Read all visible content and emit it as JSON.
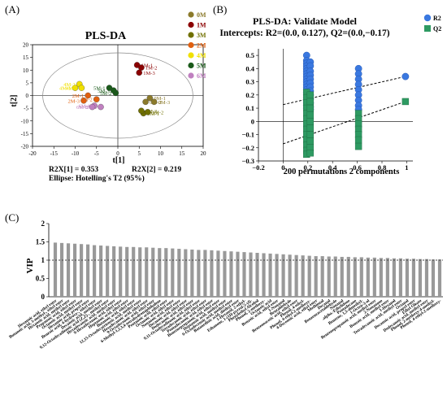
{
  "panels": {
    "a": "(A)",
    "b": "(B)",
    "c": "(C)"
  },
  "chart_data": [
    {
      "type": "scatter",
      "title": "PLS-DA",
      "xlabel": "t[1]",
      "ylabel": "t[2]",
      "xlim": [
        -20,
        20
      ],
      "ylim": [
        -20,
        20
      ],
      "xticks": [
        -20,
        -15,
        -10,
        -5,
        0,
        5,
        10,
        15,
        20
      ],
      "yticks": [
        -20,
        -15,
        -10,
        -5,
        0,
        5,
        10,
        15,
        20
      ],
      "footer": {
        "r2x1": "R2X[1] = 0.353",
        "r2x2": "R2X[2] = 0.219",
        "ellipse": "Ellipse: Hotelling's T2 (95%)"
      },
      "legend_position": "right",
      "series": [
        {
          "name": "0M",
          "color": "#8b7a2b",
          "points": [
            {
              "x": 7.5,
              "y": -1,
              "label": "0M-1"
            },
            {
              "x": 6.5,
              "y": -2.5,
              "label": "0M-2"
            },
            {
              "x": 8.5,
              "y": -2.5,
              "label": "0M-3"
            }
          ]
        },
        {
          "name": "1M",
          "color": "#8b0000",
          "points": [
            {
              "x": 4.5,
              "y": 12,
              "label": "1M-1"
            },
            {
              "x": 5.5,
              "y": 11,
              "label": "1M-2"
            },
            {
              "x": 5,
              "y": 9,
              "label": "1M-3"
            }
          ]
        },
        {
          "name": "3M",
          "color": "#707000",
          "points": [
            {
              "x": 6,
              "y": -7,
              "label": "3M-1"
            },
            {
              "x": 7,
              "y": -6.5,
              "label": "3M-2"
            },
            {
              "x": 5.5,
              "y": -6,
              "label": "3M-3"
            }
          ]
        },
        {
          "name": "2M",
          "color": "#e06010",
          "points": [
            {
              "x": -7,
              "y": 0,
              "label": "2M-1"
            },
            {
              "x": -5,
              "y": -1.5,
              "label": "2M-2"
            },
            {
              "x": -8,
              "y": -2,
              "label": "2M-3"
            }
          ]
        },
        {
          "name": "4M",
          "color": "#f0e000",
          "points": [
            {
              "x": -10,
              "y": 3,
              "label": "4M-1"
            },
            {
              "x": -9,
              "y": 4.5,
              "label": "4M-2"
            },
            {
              "x": -8.5,
              "y": 3,
              "label": "4M-3"
            }
          ]
        },
        {
          "name": "5M",
          "color": "#1a5a1a",
          "points": [
            {
              "x": -2,
              "y": 3,
              "label": "5M-1"
            },
            {
              "x": -0.5,
              "y": 1,
              "label": "5M-2"
            },
            {
              "x": -1,
              "y": 2,
              "label": "5M-3"
            }
          ]
        },
        {
          "name": "6M",
          "color": "#c080c0",
          "points": [
            {
              "x": -5.5,
              "y": -4,
              "label": "6M-1"
            },
            {
              "x": -6,
              "y": -4.5,
              "label": "6M-2"
            },
            {
              "x": -4,
              "y": -4.5,
              "label": "6M-3"
            }
          ]
        }
      ]
    },
    {
      "type": "scatter",
      "title": "PLS-DA: Validate Model",
      "subtitle": "Intercepts: R2=(0.0, 0.127), Q2=(0.0,−0.17)",
      "xlabel": "200 permutations 2 components",
      "xlim": [
        -0.2,
        1.05
      ],
      "ylim": [
        -0.3,
        0.55
      ],
      "xticks": [
        -0.2,
        0,
        0.2,
        0.4,
        0.6,
        0.8,
        1
      ],
      "xtick_labels": [
        "−0.2",
        "0",
        "0.2",
        "0.4",
        "0.6",
        "0.8",
        "1"
      ],
      "yticks": [
        -0.3,
        -0.2,
        -0.1,
        0,
        0.1,
        0.2,
        0.3,
        0.4,
        0.5
      ],
      "ytick_labels": [
        "−0.3",
        "−0.2",
        "−0.1",
        "0",
        "0.1",
        "0.2",
        "0.3",
        "0.4",
        "0.5"
      ],
      "legend_position": "top-right",
      "series": [
        {
          "name": "R2",
          "color": "#3a78e0",
          "marker": "circle",
          "groups": [
            {
              "x": 0.19,
              "values": [
                0.5,
                0.46,
                0.44,
                0.42,
                0.4,
                0.38,
                0.36,
                0.34,
                0.32,
                0.3,
                0.28,
                0.26,
                0.24,
                0.22,
                0.2,
                0.18,
                0.16,
                0.14,
                0.12,
                0.1
              ]
            },
            {
              "x": 0.22,
              "values": [
                0.45,
                0.42,
                0.38,
                0.35,
                0.32,
                0.29,
                0.26,
                0.23,
                0.2,
                0.17,
                0.14,
                0.11,
                0.09
              ]
            },
            {
              "x": 0.61,
              "values": [
                0.4,
                0.36,
                0.32,
                0.28,
                0.24,
                0.2,
                0.16,
                0.12,
                0.09
              ]
            },
            {
              "x": 0.99,
              "values": [
                0.34
              ]
            }
          ]
        },
        {
          "name": "Q2",
          "color": "#2e9a62",
          "marker": "square",
          "groups": [
            {
              "x": 0.19,
              "values": [
                0.22,
                0.18,
                0.14,
                0.1,
                0.06,
                0.02,
                -0.02,
                -0.06,
                -0.1,
                -0.14,
                -0.18,
                -0.22,
                -0.25
              ]
            },
            {
              "x": 0.22,
              "values": [
                0.2,
                0.15,
                0.1,
                0.05,
                0.0,
                -0.05,
                -0.1,
                -0.15,
                -0.2,
                -0.24
              ]
            },
            {
              "x": 0.61,
              "values": [
                0.06,
                0.02,
                -0.02,
                -0.06,
                -0.1,
                -0.14,
                -0.19
              ]
            },
            {
              "x": 0.99,
              "values": [
                0.15
              ]
            }
          ]
        }
      ],
      "regression_lines": [
        {
          "series": "R2",
          "from": [
            0,
            0.127
          ],
          "to": [
            0.99,
            0.34
          ]
        },
        {
          "series": "Q2",
          "from": [
            0,
            -0.17
          ],
          "to": [
            0.99,
            0.15
          ]
        }
      ]
    },
    {
      "type": "bar",
      "ylabel": "VIP",
      "ylim": [
        0,
        2
      ],
      "yticks": [
        0,
        0.5,
        1,
        1.5,
        2
      ],
      "ytick_labels": [
        "0",
        "0.5",
        "1",
        "1.5",
        "2"
      ],
      "reference_line": 1,
      "bar_color": "#999999",
      "categories": [
        "Hexanoic acid, ethyl ester",
        "Butanoic acid, 3-methyl-, ethyl ester",
        "Hexanoic acid, methyl ester",
        "Propanoic acid, ethyl ester",
        "Octanoic acid, methyl ester",
        "Hexanoic acid, propyl ester",
        "Benzoic acid, 4-hydroxy-, ethyl ester",
        "Decanoic acid, methyl ester",
        "9,12-Octadecadienoic acid (Z,Z)-, methyl ester",
        "Hexadecanoic acid, methyl ester",
        "9-Hexadecenoic acid, ethyl ester",
        "Heptanoic acid, ethyl ester",
        "Butanoic acid, ethyl ester",
        "12,15-Octadecatrienoic acid, methyl ester",
        "Hexadecanoic acid, ethyl ester",
        "9-Octadecenoic acid, ethyl ester",
        "6-Methyl-1,2,3,4-tetrahydronaphthalene",
        "Pentanoic acid, ethyl ester",
        "Octanoic acid, ethyl ester",
        "Nonanoic acid, ethyl ester",
        "Decanoic acid, ethyl ester",
        "Dodecanoic acid, ethyl ester",
        "9,11-Octadecadienoic acid, ethyl ester",
        "Tetradecanoic acid, ethyl ester",
        "Pentadecanoic acid, ethyl ester",
        "Benzenepropanoic acid, ethyl ester",
        "Heptanoic acid, methyl ester",
        "9-Octadecenoic acid, methyl ester",
        "Butanedioic acid, diethyl ester",
        "1-Hexanol, 2-ethyl-",
        "Ethanone, 1-(1H-pyrrol-2-yl)-",
        "Phenylethyl Alcohol",
        "Phenol, 2-methoxy-",
        "Octanoic acid",
        "Benzoic acid, ethyl ester",
        "1-Nonanol",
        "Benzaldehyde",
        "Benzeneacetic acid, ethyl ester",
        "Phenol, 4-ethyl-",
        "Phenol, 4-ethyl-2-methoxy-",
        "4-Decenoic acid, ethyl ester",
        "Methional",
        "Decanal",
        "Benzeneacetaldehyde",
        "Nonanal",
        ".alpha.-Ethylidene",
        "Pentadecane",
        "Benzene, 1,3-dimethyl-",
        "1-Octen-3-ol",
        "Benzenepropanoic acid, methyl ester",
        "2-Nonanone",
        "Benzoic acid, methyl ester",
        "1-Hexanol",
        "Tetradecanoic acid, methyl ester",
        "Octanal",
        "Decanoic acid, propyl ester",
        "Ethyl Oleate",
        "Dodecanoic acid, methyl ester",
        "Phenol, 2-methoxy-4-methyl-",
        "Phenol, 4-ethyl-2-methoxy-"
      ],
      "values": [
        1.48,
        1.47,
        1.46,
        1.45,
        1.44,
        1.43,
        1.41,
        1.4,
        1.39,
        1.38,
        1.37,
        1.36,
        1.36,
        1.35,
        1.35,
        1.34,
        1.33,
        1.33,
        1.32,
        1.31,
        1.3,
        1.29,
        1.28,
        1.28,
        1.27,
        1.26,
        1.25,
        1.24,
        1.23,
        1.22,
        1.21,
        1.2,
        1.19,
        1.18,
        1.17,
        1.16,
        1.15,
        1.14,
        1.13,
        1.12,
        1.11,
        1.11,
        1.1,
        1.1,
        1.09,
        1.09,
        1.08,
        1.08,
        1.07,
        1.07,
        1.06,
        1.06,
        1.05,
        1.05,
        1.04,
        1.04,
        1.03,
        1.03,
        1.02,
        1.02
      ]
    }
  ]
}
